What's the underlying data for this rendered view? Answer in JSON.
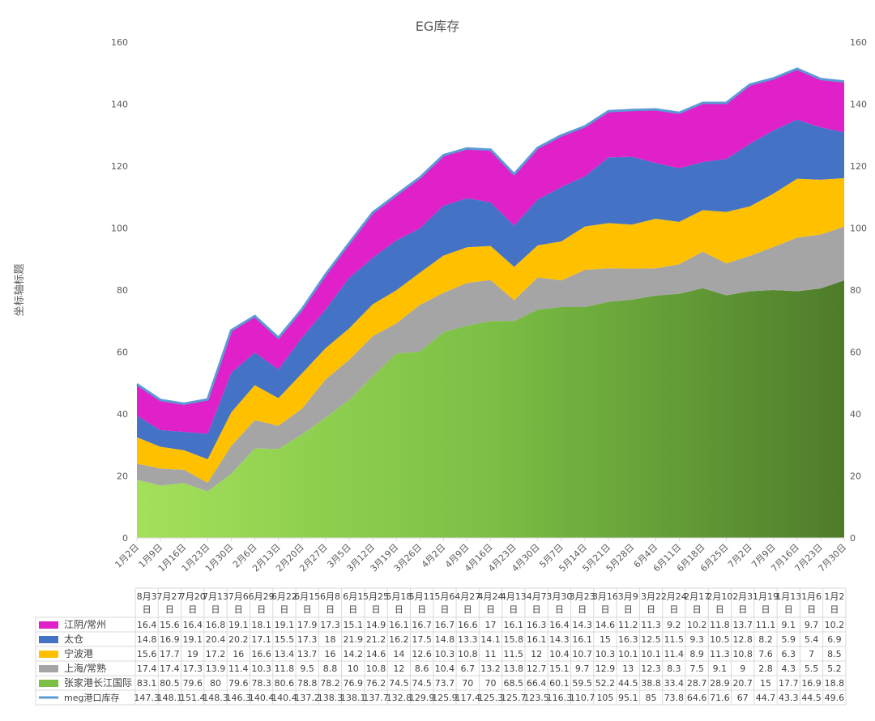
{
  "chart_data": {
    "type": "area",
    "title": "EG库存",
    "ylabel": "坐标轴标题",
    "ylim": [
      0,
      160
    ],
    "yticks": [
      0,
      20,
      40,
      60,
      80,
      100,
      120,
      140,
      160
    ],
    "grid": false,
    "x_axis_labels": [
      "1月2日",
      "1月9日",
      "1月16日",
      "1月23日",
      "1月30日",
      "2月6日",
      "2月13日",
      "2月20日",
      "2月27日",
      "3月5日",
      "3月12日",
      "3月19日",
      "3月26日",
      "4月2日",
      "4月9日",
      "4月16日",
      "4月23日",
      "4月30日",
      "5月7日",
      "5月14日",
      "5月21日",
      "5月28日",
      "6月4日",
      "6月11日",
      "6月18日",
      "6月25日",
      "7月2日",
      "7月9日",
      "7月16日",
      "7月23日",
      "7月30日"
    ],
    "table_columns": [
      "8月3日",
      "7月27日",
      "7月20日",
      "7月13日",
      "7月6日",
      "6月29日",
      "6月22日",
      "6月15日",
      "6月8日",
      "6月1日",
      "5月25日",
      "5月18日",
      "5月11日",
      "5月6日",
      "4月27日",
      "4月24日",
      "4月13日",
      "4月7日",
      "3月30日",
      "3月23日",
      "3月16日",
      "3月9日",
      "3月2日",
      "2月24日",
      "2月17日",
      "2月10日",
      "2月3日",
      "1月19日",
      "1月13日",
      "1月6日",
      "1月2日"
    ],
    "series": [
      {
        "name": "江阴/常州",
        "color": "#e020c8",
        "values": [
          16.4,
          15.6,
          16.4,
          16.8,
          19.1,
          18.1,
          19.1,
          17.9,
          17.3,
          15.1,
          14.9,
          16.1,
          16.7,
          16.7,
          16.6,
          17,
          16.1,
          16.3,
          16.4,
          14.3,
          14.6,
          11.2,
          11.3,
          9.2,
          10.2,
          11.8,
          13.7,
          11.1,
          9.1,
          9.7,
          10.2
        ]
      },
      {
        "name": "太仓",
        "color": "#4472c4",
        "values": [
          14.8,
          16.9,
          19.1,
          20.4,
          20.2,
          17.1,
          15.5,
          17.3,
          18,
          21.9,
          21.2,
          16.2,
          17.5,
          14.8,
          13.3,
          14.1,
          15.8,
          16.1,
          14.3,
          16.1,
          15,
          16.3,
          12.5,
          11.5,
          9.3,
          10.5,
          12.8,
          8.2,
          5.9,
          5.4,
          6.9
        ]
      },
      {
        "name": "宁波港",
        "color": "#ffc000",
        "values": [
          15.6,
          17.7,
          19,
          17.2,
          16,
          16.6,
          13.4,
          13.7,
          16,
          14.2,
          14.6,
          14,
          12.6,
          10.3,
          10.8,
          11,
          11.5,
          12,
          10.4,
          10.7,
          10.3,
          10.1,
          10.1,
          11.4,
          8.9,
          11.3,
          10.8,
          7.6,
          6.3,
          7,
          8.5
        ]
      },
      {
        "name": "上海/常熟",
        "color": "#a5a5a5",
        "values": [
          17.4,
          17.4,
          17.3,
          13.9,
          11.4,
          10.3,
          11.8,
          9.5,
          8.8,
          10,
          10.8,
          12,
          8.6,
          10.4,
          6.7,
          13.2,
          13.8,
          12.7,
          15.1,
          9.7,
          12.9,
          13,
          12.3,
          8.3,
          7.5,
          9.1,
          9,
          2.8,
          4.3,
          5.5,
          5.2
        ]
      },
      {
        "name": "张家港长江国际",
        "color": "#70ad47",
        "values": [
          83.1,
          80.5,
          79.6,
          80,
          79.6,
          78.3,
          80.6,
          78.8,
          78.2,
          76.9,
          76.2,
          74.5,
          74.5,
          73.7,
          70,
          70,
          68.5,
          66.4,
          60.1,
          59.5,
          52.2,
          44.5,
          38.8,
          33.4,
          28.7,
          28.9,
          20.7,
          15,
          17.7,
          16.9,
          18.8
        ]
      },
      {
        "name": "meg港口库存",
        "color": "#5b9bd5",
        "values": [
          147.3,
          148.1,
          151.4,
          148.3,
          146.3,
          140.4,
          140.4,
          137.2,
          138.3,
          138.1,
          137.7,
          132.8,
          129.9,
          125.9,
          117.4,
          125.3,
          125.7,
          123.5,
          116.3,
          110.7,
          105,
          95.1,
          85,
          73.8,
          64.6,
          71.6,
          67,
          44.7,
          43.3,
          44.5,
          49.6
        ]
      }
    ]
  }
}
